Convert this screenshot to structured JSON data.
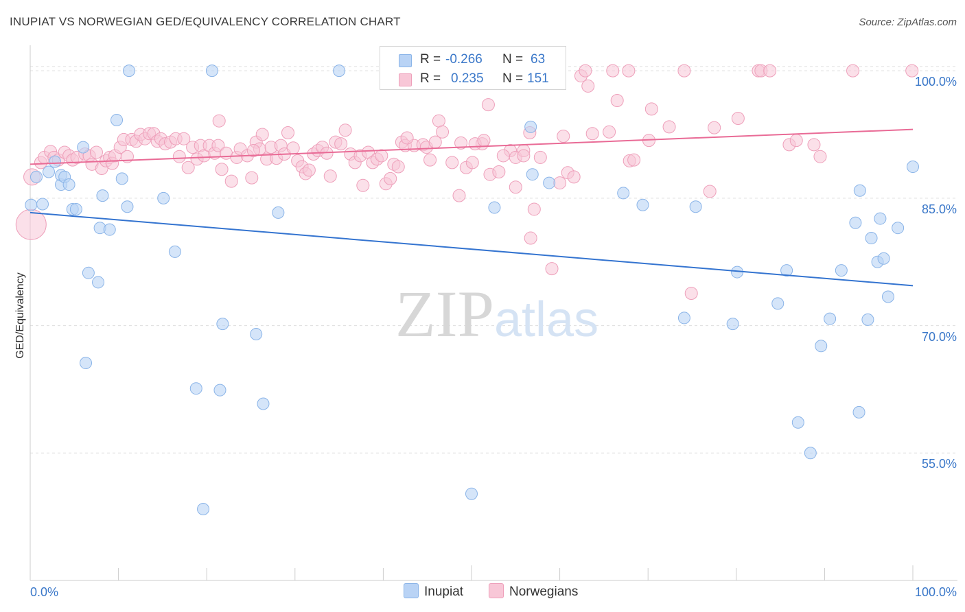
{
  "title": "INUPIAT VS NORWEGIAN GED/EQUIVALENCY CORRELATION CHART",
  "source": "Source: ZipAtlas.com",
  "watermark": {
    "zip": "ZIP",
    "atlas": "atlas"
  },
  "legend_top": [
    {
      "r_label": "R =",
      "r_value": "-0.266",
      "n_label": "N =",
      "n_value": "63"
    },
    {
      "r_label": "R =",
      "r_value": "0.235",
      "n_label": "N =",
      "n_value": "151"
    }
  ],
  "legend_bottom": [
    "Inupiat",
    "Norwegians"
  ],
  "colors": {
    "inupiat_fill": "#b9d3f5",
    "inupiat_stroke": "#8ab4e8",
    "inupiat_line": "#3474d0",
    "norwegian_fill": "#f8c7d7",
    "norwegian_stroke": "#ee9fba",
    "norwegian_line": "#e96b96",
    "tick_text": "#3b78c9",
    "grid": "#dddddd"
  },
  "chart_data": {
    "type": "scatter",
    "title": "INUPIAT VS NORWEGIAN GED/EQUIVALENCY CORRELATION CHART",
    "xlabel": "",
    "ylabel": "GED/Equivalency",
    "xlim": [
      0,
      100
    ],
    "ylim": [
      40,
      103
    ],
    "x_tick_labels": [
      "0.0%",
      "100.0%"
    ],
    "y_ticks": [
      55,
      70,
      85,
      100
    ],
    "y_tick_labels": [
      "55.0%",
      "70.0%",
      "85.0%",
      "100.0%"
    ],
    "grid": "horizontal dashed",
    "legend_placement": "top-center and bottom",
    "series": [
      {
        "name": "Inupiat",
        "R": -0.266,
        "N": 63,
        "trend": {
          "x": [
            0,
            100
          ],
          "y": [
            83.3,
            74.7
          ]
        },
        "points": [
          [
            0.1,
            84.2
          ],
          [
            0.7,
            87.5
          ],
          [
            1.4,
            84.3
          ],
          [
            2.1,
            88.1
          ],
          [
            2.8,
            89.3
          ],
          [
            3.5,
            86.6
          ],
          [
            3.5,
            87.7
          ],
          [
            3.9,
            87.5
          ],
          [
            4.4,
            86.6
          ],
          [
            4.8,
            83.7
          ],
          [
            5.2,
            83.7
          ],
          [
            6.0,
            91.0
          ],
          [
            6.3,
            65.6
          ],
          [
            6.6,
            76.2
          ],
          [
            7.7,
            75.1
          ],
          [
            7.9,
            81.5
          ],
          [
            8.2,
            85.3
          ],
          [
            9.0,
            81.3
          ],
          [
            9.8,
            94.2
          ],
          [
            10.4,
            87.3
          ],
          [
            11.0,
            84.0
          ],
          [
            11.2,
            100.0
          ],
          [
            15.1,
            85.0
          ],
          [
            16.4,
            78.7
          ],
          [
            18.8,
            62.6
          ],
          [
            19.6,
            48.4
          ],
          [
            20.6,
            100.0
          ],
          [
            21.5,
            62.4
          ],
          [
            21.8,
            70.2
          ],
          [
            25.6,
            69.0
          ],
          [
            26.4,
            60.8
          ],
          [
            28.1,
            83.3
          ],
          [
            35.0,
            100.0
          ],
          [
            50.0,
            50.2
          ],
          [
            52.6,
            83.9
          ],
          [
            56.7,
            93.4
          ],
          [
            56.9,
            87.8
          ],
          [
            58.8,
            86.8
          ],
          [
            67.2,
            85.6
          ],
          [
            69.4,
            84.2
          ],
          [
            74.1,
            70.9
          ],
          [
            75.4,
            84.0
          ],
          [
            79.6,
            70.2
          ],
          [
            80.1,
            76.3
          ],
          [
            84.7,
            72.6
          ],
          [
            85.7,
            76.5
          ],
          [
            87.0,
            58.6
          ],
          [
            88.4,
            55.0
          ],
          [
            89.6,
            67.6
          ],
          [
            90.6,
            70.8
          ],
          [
            91.9,
            76.5
          ],
          [
            93.5,
            82.1
          ],
          [
            93.9,
            59.8
          ],
          [
            94.0,
            85.9
          ],
          [
            94.9,
            70.7
          ],
          [
            95.3,
            80.3
          ],
          [
            96.0,
            77.5
          ],
          [
            96.3,
            82.6
          ],
          [
            96.7,
            77.9
          ],
          [
            97.2,
            73.4
          ],
          [
            98.3,
            81.5
          ],
          [
            100.0,
            88.7
          ],
          [
            50.0,
            100.0
          ]
        ]
      },
      {
        "name": "Norwegians",
        "R": 0.235,
        "N": 151,
        "trend": {
          "x": [
            0,
            100
          ],
          "y": [
            89.0,
            93.1
          ]
        },
        "points": [
          [
            0.1,
            81.9
          ],
          [
            0.2,
            87.5
          ],
          [
            1.2,
            89.2
          ],
          [
            1.6,
            89.8
          ],
          [
            2.3,
            90.5
          ],
          [
            2.7,
            89.8
          ],
          [
            3.2,
            89.5
          ],
          [
            3.9,
            90.4
          ],
          [
            4.4,
            90.0
          ],
          [
            4.8,
            89.5
          ],
          [
            5.3,
            89.8
          ],
          [
            6.2,
            90.2
          ],
          [
            6.7,
            90.0
          ],
          [
            7.0,
            89.0
          ],
          [
            7.5,
            90.4
          ],
          [
            8.1,
            88.5
          ],
          [
            8.6,
            89.4
          ],
          [
            9.0,
            89.8
          ],
          [
            9.3,
            89.1
          ],
          [
            9.6,
            90.0
          ],
          [
            10.2,
            91.0
          ],
          [
            10.6,
            91.9
          ],
          [
            11.0,
            89.9
          ],
          [
            11.5,
            91.9
          ],
          [
            12.0,
            91.7
          ],
          [
            12.5,
            92.5
          ],
          [
            13.0,
            92.0
          ],
          [
            13.5,
            92.6
          ],
          [
            14.0,
            92.6
          ],
          [
            14.4,
            91.7
          ],
          [
            14.8,
            92.0
          ],
          [
            15.3,
            91.4
          ],
          [
            15.9,
            91.6
          ],
          [
            16.5,
            92.0
          ],
          [
            16.9,
            89.9
          ],
          [
            17.4,
            92.0
          ],
          [
            17.9,
            88.6
          ],
          [
            18.4,
            91.0
          ],
          [
            18.9,
            89.6
          ],
          [
            19.3,
            91.2
          ],
          [
            19.7,
            90.0
          ],
          [
            20.3,
            91.2
          ],
          [
            20.9,
            90.3
          ],
          [
            21.3,
            91.2
          ],
          [
            21.7,
            88.4
          ],
          [
            22.2,
            90.3
          ],
          [
            22.8,
            87.0
          ],
          [
            23.4,
            89.8
          ],
          [
            23.8,
            90.8
          ],
          [
            24.6,
            90.0
          ],
          [
            25.1,
            87.4
          ],
          [
            25.6,
            91.6
          ],
          [
            26.0,
            90.8
          ],
          [
            26.3,
            92.5
          ],
          [
            26.8,
            89.6
          ],
          [
            27.3,
            91.0
          ],
          [
            27.9,
            89.7
          ],
          [
            28.4,
            91.2
          ],
          [
            28.8,
            90.2
          ],
          [
            29.2,
            92.7
          ],
          [
            29.8,
            90.9
          ],
          [
            30.3,
            89.4
          ],
          [
            30.8,
            88.7
          ],
          [
            31.2,
            87.9
          ],
          [
            31.6,
            88.3
          ],
          [
            32.1,
            90.2
          ],
          [
            32.6,
            90.6
          ],
          [
            33.1,
            91.0
          ],
          [
            33.6,
            90.3
          ],
          [
            34.0,
            87.6
          ],
          [
            34.6,
            91.6
          ],
          [
            35.2,
            91.4
          ],
          [
            35.7,
            93.0
          ],
          [
            36.3,
            90.2
          ],
          [
            36.8,
            89.2
          ],
          [
            37.4,
            90.0
          ],
          [
            37.7,
            86.5
          ],
          [
            38.3,
            90.4
          ],
          [
            38.8,
            89.2
          ],
          [
            39.3,
            89.6
          ],
          [
            39.8,
            90.0
          ],
          [
            40.3,
            86.7
          ],
          [
            40.8,
            87.3
          ],
          [
            41.2,
            89.0
          ],
          [
            41.7,
            88.7
          ],
          [
            42.1,
            91.6
          ],
          [
            42.5,
            91.2
          ],
          [
            43.5,
            91.2
          ],
          [
            44.5,
            91.3
          ],
          [
            44.9,
            91.0
          ],
          [
            45.3,
            89.5
          ],
          [
            45.9,
            91.6
          ],
          [
            46.3,
            94.1
          ],
          [
            46.7,
            92.8
          ],
          [
            47.8,
            89.2
          ],
          [
            48.6,
            85.3
          ],
          [
            48.8,
            91.5
          ],
          [
            49.4,
            88.6
          ],
          [
            50.1,
            89.2
          ],
          [
            51.2,
            91.4
          ],
          [
            51.9,
            96.0
          ],
          [
            52.1,
            87.8
          ],
          [
            53.1,
            88.1
          ],
          [
            54.4,
            90.6
          ],
          [
            55.0,
            89.8
          ],
          [
            55.9,
            90.6
          ],
          [
            56.6,
            92.7
          ],
          [
            57.1,
            83.7
          ],
          [
            57.8,
            89.8
          ],
          [
            59.1,
            100.0
          ],
          [
            60.4,
            92.3
          ],
          [
            60.9,
            88.0
          ],
          [
            61.6,
            87.5
          ],
          [
            62.4,
            99.4
          ],
          [
            62.9,
            100.0
          ],
          [
            63.2,
            98.2
          ],
          [
            63.7,
            92.6
          ],
          [
            65.6,
            92.8
          ],
          [
            66.0,
            100.0
          ],
          [
            66.5,
            96.5
          ],
          [
            67.8,
            100.0
          ],
          [
            67.9,
            89.4
          ],
          [
            68.4,
            89.5
          ],
          [
            70.1,
            91.8
          ],
          [
            70.4,
            95.5
          ],
          [
            72.4,
            93.4
          ],
          [
            74.1,
            100.0
          ],
          [
            74.9,
            73.8
          ],
          [
            77.0,
            85.8
          ],
          [
            77.5,
            93.3
          ],
          [
            80.2,
            94.4
          ],
          [
            82.5,
            100.0
          ],
          [
            82.8,
            100.0
          ],
          [
            83.8,
            100.0
          ],
          [
            86.0,
            91.3
          ],
          [
            86.8,
            91.8
          ],
          [
            88.8,
            91.3
          ],
          [
            89.5,
            89.9
          ],
          [
            93.2,
            100.0
          ],
          [
            99.9,
            100.0
          ],
          [
            50.4,
            91.4
          ],
          [
            51.4,
            91.8
          ],
          [
            53.6,
            90.0
          ],
          [
            55.9,
            90.0
          ],
          [
            21.4,
            94.1
          ],
          [
            25.3,
            90.6
          ],
          [
            42.7,
            92.1
          ],
          [
            55.0,
            86.3
          ],
          [
            56.7,
            80.3
          ],
          [
            60.0,
            86.8
          ],
          [
            59.1,
            76.7
          ]
        ]
      }
    ]
  }
}
